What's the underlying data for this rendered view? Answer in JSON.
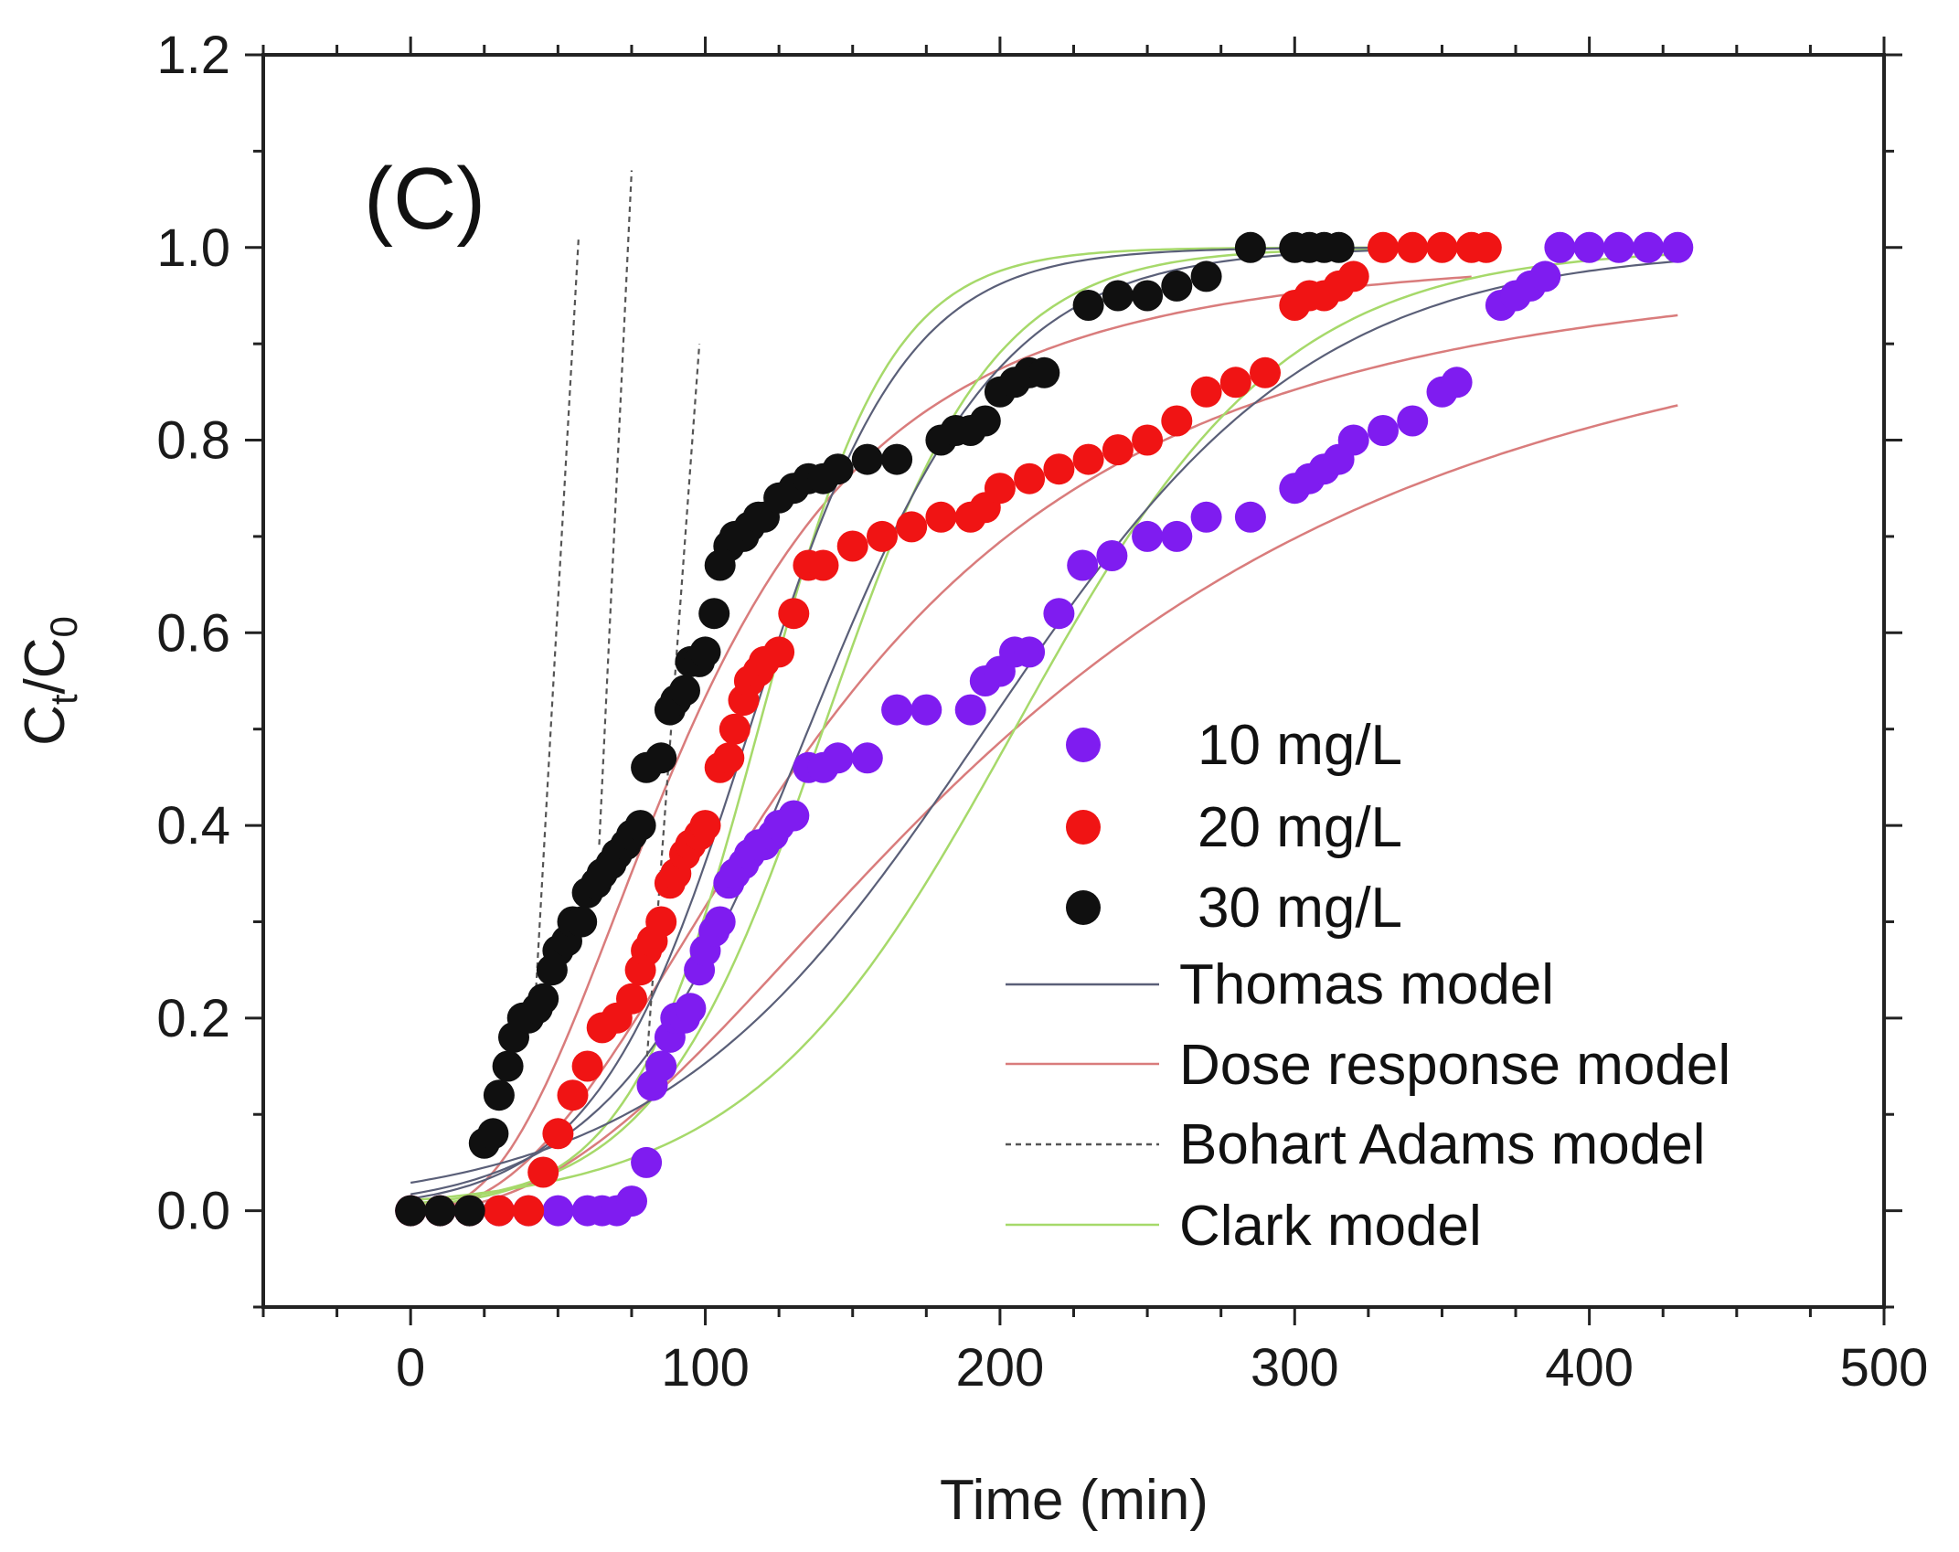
{
  "chart_data": {
    "type": "scatter",
    "panel_label": "(C)",
    "xlabel": "Time (min)",
    "ylabel": {
      "base": "C",
      "sub_t": "t",
      "slash": "/",
      "base2": "C",
      "sub_0": "0"
    },
    "xlim": [
      -50,
      500
    ],
    "ylim": [
      -0.1,
      1.2
    ],
    "x_ticks": [
      "0",
      "100",
      "200",
      "300",
      "400",
      "500"
    ],
    "y_ticks": [
      "0.0",
      "0.2",
      "0.4",
      "0.6",
      "0.8",
      "1.0",
      "1.2"
    ],
    "x_tick_values": [
      0,
      100,
      200,
      300,
      400,
      500
    ],
    "y_tick_values": [
      0.0,
      0.2,
      0.4,
      0.6,
      0.8,
      1.0,
      1.2
    ],
    "colors": {
      "s10": "#7f1cf0",
      "s20": "#f01414",
      "s30": "#101010",
      "thomas": "#5a5f78",
      "dose": "#d97c7c",
      "bohart": "#555555",
      "clark": "#a6d96a"
    },
    "series": [
      {
        "name": "10 mg/L",
        "key": "s10",
        "x": [
          0,
          10,
          20,
          30,
          40,
          50,
          60,
          65,
          70,
          75,
          80,
          82,
          85,
          88,
          90,
          93,
          95,
          98,
          100,
          103,
          105,
          108,
          110,
          113,
          115,
          118,
          120,
          123,
          125,
          130,
          135,
          140,
          145,
          155,
          165,
          175,
          190,
          195,
          200,
          205,
          210,
          220,
          228,
          238,
          250,
          260,
          270,
          285,
          300,
          305,
          310,
          315,
          320,
          330,
          340,
          350,
          355,
          370,
          375,
          380,
          385,
          390,
          400,
          410,
          420,
          430
        ],
        "y": [
          0,
          0,
          0,
          0,
          0,
          0,
          0,
          0,
          0,
          0.01,
          0.05,
          0.13,
          0.15,
          0.18,
          0.2,
          0.2,
          0.21,
          0.25,
          0.27,
          0.29,
          0.3,
          0.34,
          0.35,
          0.36,
          0.37,
          0.38,
          0.38,
          0.39,
          0.4,
          0.41,
          0.46,
          0.46,
          0.47,
          0.47,
          0.52,
          0.52,
          0.52,
          0.55,
          0.56,
          0.58,
          0.58,
          0.62,
          0.67,
          0.68,
          0.7,
          0.7,
          0.72,
          0.72,
          0.75,
          0.76,
          0.77,
          0.78,
          0.8,
          0.81,
          0.82,
          0.85,
          0.86,
          0.94,
          0.95,
          0.96,
          0.97,
          1.0,
          1.0,
          1.0,
          1.0,
          1.0
        ]
      },
      {
        "name": "20 mg/L",
        "key": "s20",
        "x": [
          0,
          10,
          20,
          30,
          40,
          45,
          50,
          55,
          60,
          65,
          70,
          75,
          78,
          80,
          82,
          85,
          88,
          90,
          93,
          95,
          98,
          100,
          105,
          108,
          110,
          113,
          115,
          118,
          120,
          125,
          130,
          135,
          140,
          150,
          160,
          170,
          180,
          190,
          195,
          200,
          210,
          220,
          230,
          240,
          250,
          260,
          270,
          280,
          290,
          300,
          305,
          310,
          315,
          320,
          330,
          340,
          350,
          360,
          365
        ],
        "y": [
          0,
          0,
          0,
          0,
          0,
          0.04,
          0.08,
          0.12,
          0.15,
          0.19,
          0.2,
          0.22,
          0.25,
          0.27,
          0.28,
          0.3,
          0.34,
          0.35,
          0.37,
          0.38,
          0.39,
          0.4,
          0.46,
          0.47,
          0.5,
          0.53,
          0.55,
          0.56,
          0.57,
          0.58,
          0.62,
          0.67,
          0.67,
          0.69,
          0.7,
          0.71,
          0.72,
          0.72,
          0.73,
          0.75,
          0.76,
          0.77,
          0.78,
          0.79,
          0.8,
          0.82,
          0.85,
          0.86,
          0.87,
          0.94,
          0.95,
          0.95,
          0.96,
          0.97,
          1.0,
          1.0,
          1.0,
          1.0,
          1.0
        ]
      },
      {
        "name": "30 mg/L",
        "key": "s30",
        "x": [
          0,
          10,
          20,
          25,
          28,
          30,
          33,
          35,
          38,
          40,
          43,
          45,
          48,
          50,
          53,
          55,
          58,
          60,
          63,
          65,
          68,
          70,
          73,
          75,
          78,
          80,
          85,
          88,
          90,
          93,
          95,
          98,
          100,
          103,
          105,
          108,
          110,
          113,
          115,
          118,
          120,
          125,
          130,
          135,
          140,
          145,
          155,
          165,
          180,
          185,
          190,
          195,
          200,
          205,
          210,
          215,
          230,
          240,
          250,
          260,
          270,
          285,
          300,
          305,
          310,
          315
        ],
        "y": [
          0,
          0,
          0,
          0.07,
          0.08,
          0.12,
          0.15,
          0.18,
          0.2,
          0.2,
          0.21,
          0.22,
          0.25,
          0.27,
          0.28,
          0.3,
          0.3,
          0.33,
          0.34,
          0.35,
          0.36,
          0.37,
          0.38,
          0.39,
          0.4,
          0.46,
          0.47,
          0.52,
          0.53,
          0.54,
          0.57,
          0.57,
          0.58,
          0.62,
          0.67,
          0.69,
          0.7,
          0.7,
          0.71,
          0.72,
          0.72,
          0.74,
          0.75,
          0.76,
          0.76,
          0.77,
          0.78,
          0.78,
          0.8,
          0.81,
          0.81,
          0.82,
          0.85,
          0.86,
          0.87,
          0.87,
          0.94,
          0.95,
          0.95,
          0.96,
          0.97,
          1.0,
          1.0,
          1.0,
          1.0,
          1.0
        ]
      }
    ],
    "models": [
      {
        "name": "Thomas model",
        "style": "solid",
        "key": "thomas"
      },
      {
        "name": "Dose response model",
        "style": "solid",
        "key": "dose"
      },
      {
        "name": "Bohart Adams model",
        "style": "dotted",
        "key": "bohart"
      },
      {
        "name": "Clark model",
        "style": "solid",
        "key": "clark"
      }
    ],
    "model_curves": {
      "thomas": [
        {
          "x0": 0,
          "x1": 360,
          "k": 0.038,
          "t50": 115,
          "top": 1.0
        },
        {
          "x0": 0,
          "x1": 360,
          "k": 0.03,
          "t50": 135,
          "top": 1.0
        },
        {
          "x0": 0,
          "x1": 430,
          "k": 0.018,
          "t50": 195,
          "top": 1.0
        }
      ],
      "dose": [
        {
          "x0": 0,
          "x1": 360,
          "a": 2.6,
          "b": 95,
          "top": 1.0
        },
        {
          "x0": 0,
          "x1": 430,
          "a": 2.3,
          "b": 140,
          "top": 1.0
        },
        {
          "x0": 0,
          "x1": 430,
          "a": 2.2,
          "b": 205,
          "top": 1.0
        }
      ],
      "clark": [
        {
          "x0": 0,
          "x1": 360,
          "k": 0.045,
          "t50": 118,
          "top": 1.0
        },
        {
          "x0": 0,
          "x1": 360,
          "k": 0.035,
          "t50": 140,
          "top": 1.0
        },
        {
          "x0": 0,
          "x1": 430,
          "k": 0.022,
          "t50": 205,
          "top": 1.0
        }
      ],
      "bohart": [
        {
          "x": [
            42,
            57
          ],
          "y": [
            0.2,
            1.01
          ]
        },
        {
          "x": [
            64,
            75
          ],
          "y": [
            0.38,
            1.08
          ]
        },
        {
          "x": [
            80,
            98
          ],
          "y": [
            0.15,
            0.9
          ]
        }
      ]
    }
  }
}
